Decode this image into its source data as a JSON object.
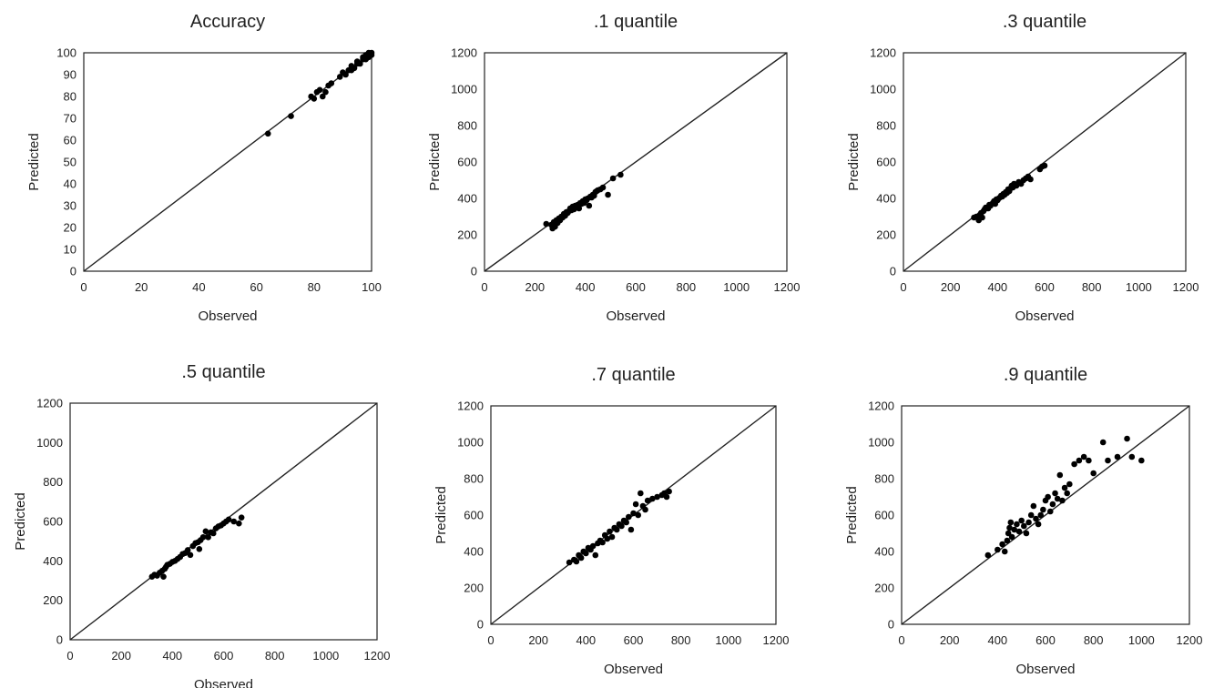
{
  "chart_data": [
    {
      "type": "scatter",
      "title": "Accuracy",
      "xlabel": "Observed",
      "ylabel": "Predicted",
      "xlim": [
        0,
        100
      ],
      "ylim": [
        0,
        100
      ],
      "xticks": [
        "0",
        "20",
        "40",
        "60",
        "80",
        "100"
      ],
      "yticks": [
        "0",
        "10",
        "20",
        "30",
        "40",
        "50",
        "60",
        "70",
        "80",
        "90",
        "100"
      ],
      "reference_line": [
        [
          0,
          0
        ],
        [
          100,
          100
        ]
      ],
      "grid": false,
      "points": [
        [
          64,
          63
        ],
        [
          72,
          71
        ],
        [
          79,
          80
        ],
        [
          80,
          79
        ],
        [
          81,
          82
        ],
        [
          82,
          83
        ],
        [
          83,
          80
        ],
        [
          84,
          82
        ],
        [
          85,
          85
        ],
        [
          86,
          86
        ],
        [
          89,
          89
        ],
        [
          90,
          91
        ],
        [
          91,
          90
        ],
        [
          92,
          92
        ],
        [
          93,
          92
        ],
        [
          93,
          94
        ],
        [
          94,
          93
        ],
        [
          95,
          95
        ],
        [
          95,
          96
        ],
        [
          96,
          95
        ],
        [
          97,
          97
        ],
        [
          97,
          98
        ],
        [
          98,
          97
        ],
        [
          98,
          99
        ],
        [
          99,
          98
        ],
        [
          99,
          100
        ],
        [
          100,
          99
        ],
        [
          100,
          100
        ]
      ]
    },
    {
      "type": "scatter",
      "title": ".1 quantile",
      "xlabel": "Observed",
      "ylabel": "Predicted",
      "xlim": [
        0,
        1200
      ],
      "ylim": [
        0,
        1200
      ],
      "xticks": [
        "0",
        "200",
        "400",
        "600",
        "800",
        "1000",
        "1200"
      ],
      "yticks": [
        "0",
        "200",
        "400",
        "600",
        "800",
        "1000",
        "1200"
      ],
      "reference_line": [
        [
          0,
          0
        ],
        [
          1200,
          1200
        ]
      ],
      "grid": false,
      "points": [
        [
          245,
          260
        ],
        [
          265,
          255
        ],
        [
          270,
          235
        ],
        [
          275,
          270
        ],
        [
          280,
          245
        ],
        [
          285,
          280
        ],
        [
          290,
          265
        ],
        [
          295,
          290
        ],
        [
          300,
          280
        ],
        [
          305,
          300
        ],
        [
          310,
          295
        ],
        [
          315,
          315
        ],
        [
          320,
          305
        ],
        [
          325,
          325
        ],
        [
          330,
          320
        ],
        [
          335,
          330
        ],
        [
          340,
          345
        ],
        [
          345,
          335
        ],
        [
          350,
          355
        ],
        [
          355,
          340
        ],
        [
          360,
          360
        ],
        [
          365,
          350
        ],
        [
          370,
          365
        ],
        [
          375,
          345
        ],
        [
          380,
          375
        ],
        [
          385,
          370
        ],
        [
          390,
          385
        ],
        [
          395,
          375
        ],
        [
          400,
          395
        ],
        [
          405,
          390
        ],
        [
          410,
          400
        ],
        [
          415,
          360
        ],
        [
          420,
          410
        ],
        [
          425,
          405
        ],
        [
          430,
          420
        ],
        [
          435,
          415
        ],
        [
          440,
          435
        ],
        [
          445,
          440
        ],
        [
          450,
          445
        ],
        [
          460,
          450
        ],
        [
          470,
          460
        ],
        [
          490,
          420
        ],
        [
          510,
          510
        ],
        [
          540,
          530
        ]
      ]
    },
    {
      "type": "scatter",
      "title": ".3 quantile",
      "xlabel": "Observed",
      "ylabel": "Predicted",
      "xlim": [
        0,
        1200
      ],
      "ylim": [
        0,
        1200
      ],
      "xticks": [
        "0",
        "200",
        "400",
        "600",
        "800",
        "1000",
        "1200"
      ],
      "yticks": [
        "0",
        "200",
        "400",
        "600",
        "800",
        "1000",
        "1200"
      ],
      "reference_line": [
        [
          0,
          0
        ],
        [
          1200,
          1200
        ]
      ],
      "grid": false,
      "points": [
        [
          300,
          295
        ],
        [
          310,
          300
        ],
        [
          320,
          280
        ],
        [
          325,
          310
        ],
        [
          330,
          320
        ],
        [
          335,
          295
        ],
        [
          340,
          330
        ],
        [
          345,
          340
        ],
        [
          350,
          350
        ],
        [
          360,
          345
        ],
        [
          365,
          365
        ],
        [
          370,
          360
        ],
        [
          380,
          375
        ],
        [
          385,
          385
        ],
        [
          390,
          370
        ],
        [
          395,
          395
        ],
        [
          400,
          390
        ],
        [
          405,
          400
        ],
        [
          410,
          405
        ],
        [
          415,
          415
        ],
        [
          420,
          410
        ],
        [
          425,
          425
        ],
        [
          430,
          420
        ],
        [
          435,
          435
        ],
        [
          440,
          430
        ],
        [
          445,
          450
        ],
        [
          450,
          440
        ],
        [
          455,
          455
        ],
        [
          460,
          470
        ],
        [
          465,
          460
        ],
        [
          470,
          480
        ],
        [
          480,
          470
        ],
        [
          490,
          490
        ],
        [
          500,
          480
        ],
        [
          510,
          500
        ],
        [
          520,
          510
        ],
        [
          530,
          520
        ],
        [
          540,
          505
        ],
        [
          580,
          560
        ],
        [
          590,
          575
        ],
        [
          600,
          580
        ]
      ]
    },
    {
      "type": "scatter",
      "title": ".5 quantile",
      "xlabel": "Observed",
      "ylabel": "Predicted",
      "xlim": [
        0,
        1200
      ],
      "ylim": [
        0,
        1200
      ],
      "xticks": [
        "0",
        "200",
        "400",
        "600",
        "800",
        "1000",
        "1200"
      ],
      "yticks": [
        "0",
        "200",
        "400",
        "600",
        "800",
        "1000",
        "1200"
      ],
      "reference_line": [
        [
          0,
          0
        ],
        [
          1200,
          1200
        ]
      ],
      "grid": false,
      "points": [
        [
          320,
          320
        ],
        [
          330,
          330
        ],
        [
          340,
          325
        ],
        [
          350,
          340
        ],
        [
          360,
          350
        ],
        [
          365,
          320
        ],
        [
          370,
          360
        ],
        [
          375,
          370
        ],
        [
          380,
          380
        ],
        [
          390,
          385
        ],
        [
          400,
          395
        ],
        [
          410,
          400
        ],
        [
          420,
          410
        ],
        [
          430,
          420
        ],
        [
          440,
          435
        ],
        [
          450,
          440
        ],
        [
          460,
          455
        ],
        [
          470,
          430
        ],
        [
          480,
          475
        ],
        [
          490,
          490
        ],
        [
          500,
          495
        ],
        [
          505,
          460
        ],
        [
          510,
          505
        ],
        [
          520,
          520
        ],
        [
          530,
          550
        ],
        [
          540,
          520
        ],
        [
          550,
          545
        ],
        [
          560,
          540
        ],
        [
          570,
          565
        ],
        [
          580,
          575
        ],
        [
          590,
          580
        ],
        [
          600,
          590
        ],
        [
          610,
          600
        ],
        [
          620,
          610
        ],
        [
          640,
          600
        ],
        [
          660,
          590
        ],
        [
          670,
          620
        ]
      ]
    },
    {
      "type": "scatter",
      "title": ".7 quantile",
      "xlabel": "Observed",
      "ylabel": "Predicted",
      "xlim": [
        0,
        1200
      ],
      "ylim": [
        0,
        1200
      ],
      "xticks": [
        "0",
        "200",
        "400",
        "600",
        "800",
        "1000",
        "1200"
      ],
      "yticks": [
        "0",
        "200",
        "400",
        "600",
        "800",
        "1000",
        "1200"
      ],
      "reference_line": [
        [
          0,
          0
        ],
        [
          1200,
          1200
        ]
      ],
      "grid": false,
      "points": [
        [
          330,
          340
        ],
        [
          350,
          355
        ],
        [
          360,
          345
        ],
        [
          370,
          380
        ],
        [
          380,
          365
        ],
        [
          390,
          400
        ],
        [
          400,
          390
        ],
        [
          410,
          420
        ],
        [
          420,
          410
        ],
        [
          430,
          430
        ],
        [
          440,
          380
        ],
        [
          450,
          445
        ],
        [
          460,
          460
        ],
        [
          470,
          450
        ],
        [
          480,
          490
        ],
        [
          490,
          470
        ],
        [
          500,
          510
        ],
        [
          510,
          480
        ],
        [
          520,
          530
        ],
        [
          530,
          520
        ],
        [
          540,
          550
        ],
        [
          550,
          540
        ],
        [
          560,
          570
        ],
        [
          570,
          560
        ],
        [
          580,
          590
        ],
        [
          590,
          520
        ],
        [
          600,
          610
        ],
        [
          610,
          660
        ],
        [
          620,
          600
        ],
        [
          630,
          720
        ],
        [
          640,
          650
        ],
        [
          650,
          630
        ],
        [
          660,
          680
        ],
        [
          680,
          690
        ],
        [
          700,
          700
        ],
        [
          720,
          710
        ],
        [
          730,
          720
        ],
        [
          740,
          700
        ],
        [
          750,
          730
        ]
      ]
    },
    {
      "type": "scatter",
      "title": ".9 quantile",
      "xlabel": "Observed",
      "ylabel": "Predicted",
      "xlim": [
        0,
        1200
      ],
      "ylim": [
        0,
        1200
      ],
      "xticks": [
        "0",
        "200",
        "400",
        "600",
        "800",
        "1000",
        "1200"
      ],
      "yticks": [
        "0",
        "200",
        "400",
        "600",
        "800",
        "1000",
        "1200"
      ],
      "reference_line": [
        [
          0,
          0
        ],
        [
          1200,
          1200
        ]
      ],
      "grid": false,
      "points": [
        [
          360,
          380
        ],
        [
          400,
          410
        ],
        [
          420,
          440
        ],
        [
          430,
          400
        ],
        [
          440,
          460
        ],
        [
          445,
          500
        ],
        [
          450,
          530
        ],
        [
          455,
          560
        ],
        [
          460,
          480
        ],
        [
          470,
          520
        ],
        [
          480,
          550
        ],
        [
          490,
          510
        ],
        [
          500,
          570
        ],
        [
          510,
          540
        ],
        [
          520,
          500
        ],
        [
          530,
          560
        ],
        [
          540,
          600
        ],
        [
          550,
          650
        ],
        [
          560,
          580
        ],
        [
          570,
          550
        ],
        [
          580,
          600
        ],
        [
          590,
          630
        ],
        [
          600,
          680
        ],
        [
          610,
          700
        ],
        [
          620,
          620
        ],
        [
          630,
          660
        ],
        [
          640,
          720
        ],
        [
          650,
          690
        ],
        [
          660,
          820
        ],
        [
          670,
          680
        ],
        [
          680,
          750
        ],
        [
          690,
          720
        ],
        [
          700,
          770
        ],
        [
          720,
          880
        ],
        [
          740,
          900
        ],
        [
          760,
          920
        ],
        [
          780,
          900
        ],
        [
          800,
          830
        ],
        [
          840,
          1000
        ],
        [
          860,
          900
        ],
        [
          900,
          920
        ],
        [
          940,
          1020
        ],
        [
          960,
          920
        ],
        [
          1000,
          900
        ]
      ]
    }
  ]
}
